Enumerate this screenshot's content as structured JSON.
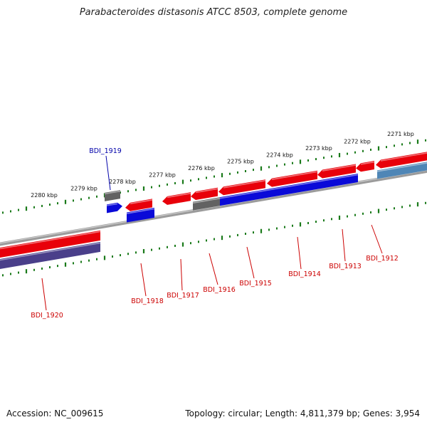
{
  "title": "Parabacteroides distasonis ATCC 8503, complete genome",
  "footer": {
    "accession": "Accession: NC_009615",
    "summary": "Topology: circular; Length: 4,811,379 bp; Genes: 3,954"
  },
  "colors": {
    "forward": "#e8000a",
    "reverse": "#0a0ad8",
    "reverse_dark": "#4a3f8a",
    "reverse_steel": "#4f86b6",
    "gray_gene": "#626262",
    "backbone": "#8a8a8a",
    "tick": "#1a7a1a",
    "label_red": "#cc0000",
    "label_blue": "#0000aa"
  },
  "scale": {
    "labels": [
      "2271 kbp",
      "2272 kbp",
      "2273 kbp",
      "2274 kbp",
      "2275 kbp",
      "2276 kbp",
      "2277 kbp",
      "2278 kbp",
      "2279 kbp",
      "2280 kbp"
    ]
  },
  "genes": [
    {
      "name": "BDI_1912",
      "color_key": "forward"
    },
    {
      "name": "BDI_1913",
      "color_key": "forward"
    },
    {
      "name": "BDI_1914",
      "color_key": "forward"
    },
    {
      "name": "BDI_1915",
      "color_key": "forward"
    },
    {
      "name": "BDI_1916",
      "color_key": "forward"
    },
    {
      "name": "BDI_1917",
      "color_key": "forward"
    },
    {
      "name": "BDI_1918",
      "color_key": "forward"
    },
    {
      "name": "BDI_1919",
      "color_key": "reverse"
    },
    {
      "name": "BDI_1920",
      "color_key": "forward"
    }
  ]
}
